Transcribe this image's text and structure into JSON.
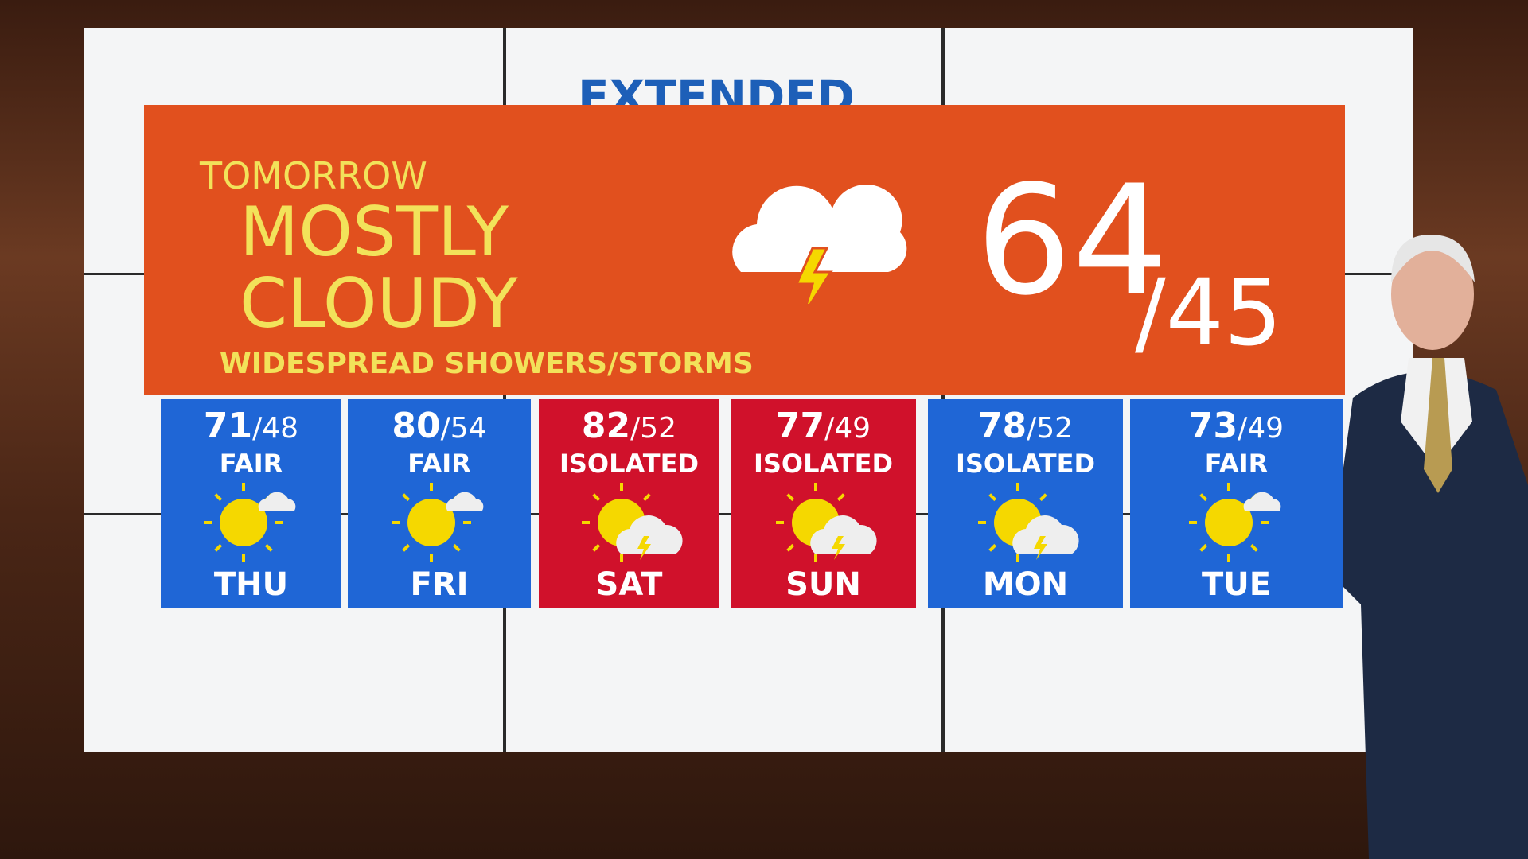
{
  "header": {
    "title": "EXTENDED"
  },
  "tomorrow": {
    "label": "TOMORROW",
    "condition": [
      "MOSTLY",
      "CLOUDY"
    ],
    "detail": "WIDESPREAD SHOWERS/STORMS",
    "high": "64",
    "low": "/45",
    "color": "#e1501e"
  },
  "days": [
    {
      "high": "71",
      "low": "/48",
      "condition": "FAIR",
      "day": "THU",
      "color": "#1f66d6"
    },
    {
      "high": "80",
      "low": "/54",
      "condition": "FAIR",
      "day": "FRI",
      "color": "#1f66d6"
    },
    {
      "high": "82",
      "low": "/52",
      "condition": "ISOLATED",
      "day": "SAT",
      "color": "#d0112b"
    },
    {
      "high": "77",
      "low": "/49",
      "condition": "ISOLATED",
      "day": "SUN",
      "color": "#d0112b"
    },
    {
      "high": "78",
      "low": "/52",
      "condition": "ISOLATED",
      "day": "MON",
      "color": "#1f66d6"
    },
    {
      "high": "73",
      "low": "/49",
      "condition": "FAIR",
      "day": "TUE",
      "color": "#1f66d6"
    }
  ]
}
